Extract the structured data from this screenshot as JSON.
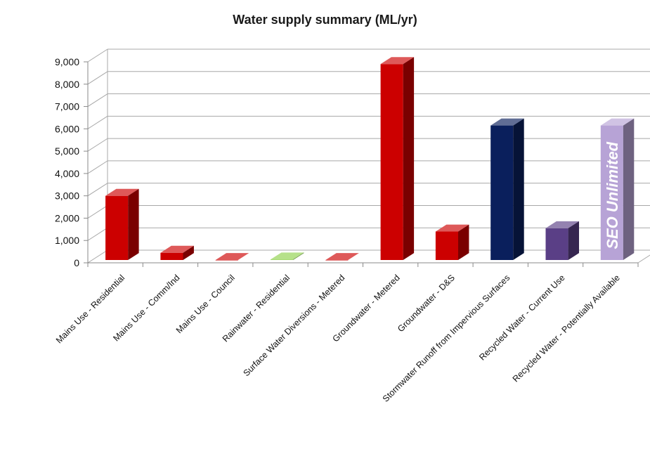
{
  "chart_data": {
    "type": "bar",
    "title": "Water supply summary (ML/yr)",
    "xlabel": "",
    "ylabel": "",
    "ylim": [
      0,
      9000
    ],
    "yticks": [
      "0",
      "1,000",
      "2,000",
      "3,000",
      "4,000",
      "5,000",
      "6,000",
      "7,000",
      "8,000",
      "9,000"
    ],
    "grid": true,
    "categories": [
      "Mains Use - Residential",
      "Mains Use - Comm/Ind",
      "Mains Use - Council",
      "Rainwater - Residential",
      "Surface Water Diversions - Metered",
      "Groundwater - Metered",
      "Groundwater - D&S",
      "Stormwater Runoff from Impervious Surfaces",
      "Recycled Water - Current Use",
      "Recycled Water - Potentially Available"
    ],
    "values": [
      3000,
      450,
      0,
      150,
      80,
      8900,
      1400,
      6150,
      1550,
      6150
    ],
    "colors": [
      "#cc0000",
      "#cc0000",
      "#cc0000",
      "#8ed14b",
      "#cc0000",
      "#cc0000",
      "#cc0000",
      "#0a1f5c",
      "#5a3f86",
      "#b7a3d6"
    ],
    "bar_annotations": [
      {
        "index": 9,
        "text": "SEO Unlimited"
      }
    ]
  }
}
